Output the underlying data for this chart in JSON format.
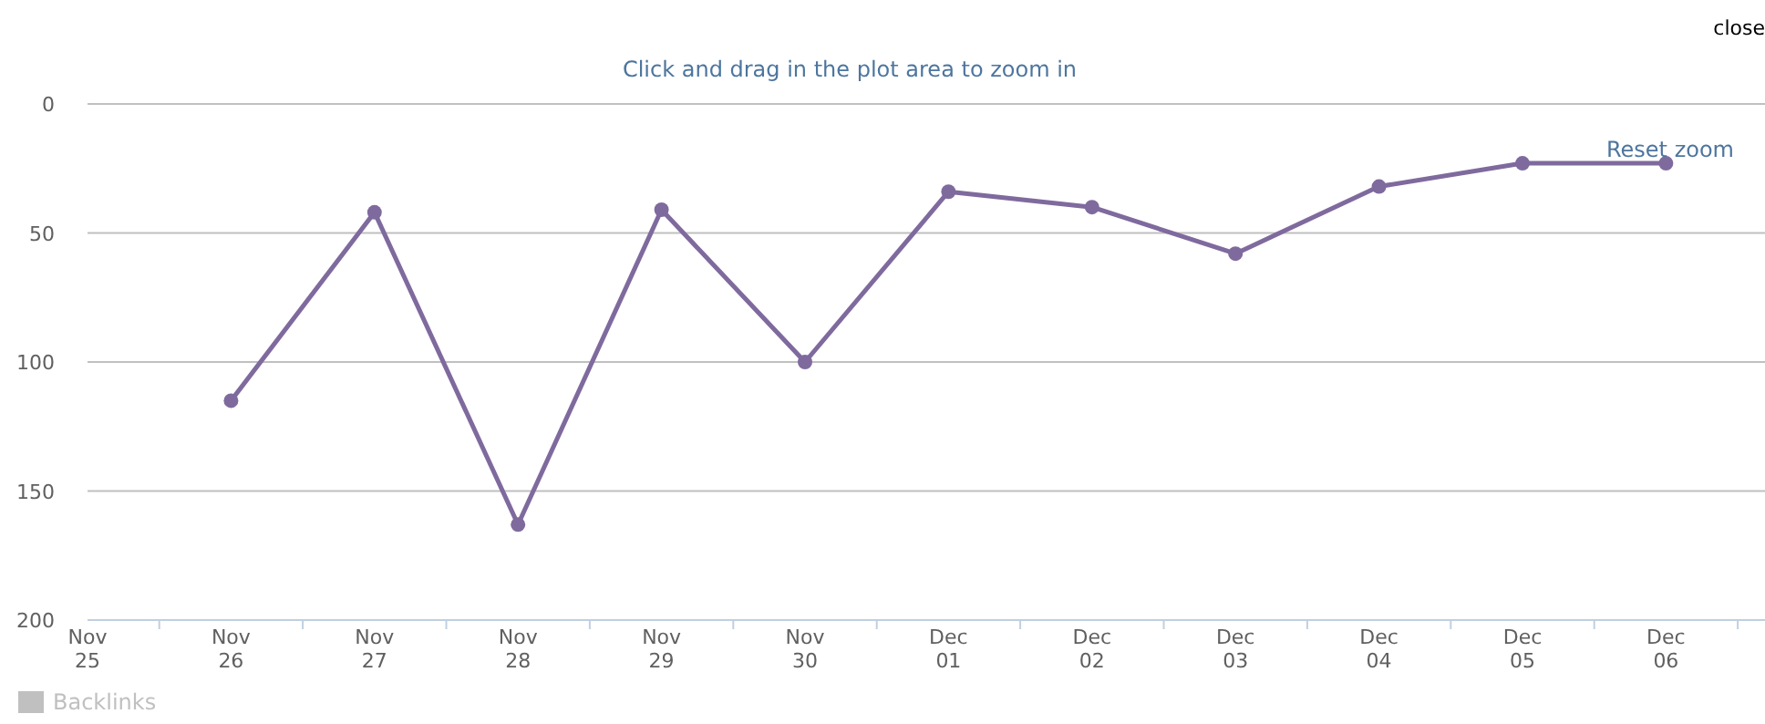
{
  "chart_data": {
    "type": "line",
    "subtitle": "Click and drag in the plot area to zoom in",
    "categories": [
      "Nov 25",
      "Nov 26",
      "Nov 27",
      "Nov 28",
      "Nov 29",
      "Nov 30",
      "Dec 01",
      "Dec 02",
      "Dec 03",
      "Dec 04",
      "Dec 05",
      "Dec 06"
    ],
    "series": [
      {
        "name": "Backlinks",
        "color": "#c0c0c0",
        "values": [
          null,
          null,
          null,
          null,
          null,
          null,
          null,
          null,
          null,
          null,
          null,
          null
        ]
      },
      {
        "color": "#7f6a9e",
        "values": [
          null,
          115,
          42,
          163,
          41,
          100,
          34,
          40,
          58,
          32,
          23,
          23
        ]
      }
    ],
    "ylim": [
      200,
      0
    ],
    "yticks": [
      0,
      50,
      100,
      150,
      200
    ],
    "grid": "y",
    "legend": "bottom",
    "marker": "circle",
    "line_style": "solid",
    "annotations": [
      "Reset zoom",
      "close"
    ]
  }
}
